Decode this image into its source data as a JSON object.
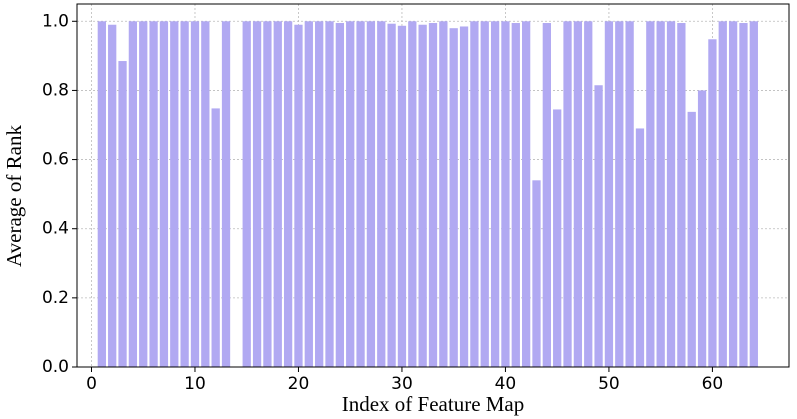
{
  "chart_data": {
    "type": "bar",
    "xlabel": "Index of Feature Map",
    "ylabel": "Average of Rank",
    "x": [
      1,
      2,
      3,
      4,
      5,
      6,
      7,
      8,
      9,
      10,
      11,
      12,
      13,
      14,
      15,
      16,
      17,
      18,
      19,
      20,
      21,
      22,
      23,
      24,
      25,
      26,
      27,
      28,
      29,
      30,
      31,
      32,
      33,
      34,
      35,
      36,
      37,
      38,
      39,
      40,
      41,
      42,
      43,
      44,
      45,
      46,
      47,
      48,
      49,
      50,
      51,
      52,
      53,
      54,
      55,
      56,
      57,
      58,
      59,
      60,
      61,
      62,
      63,
      64
    ],
    "values": [
      1.0,
      0.99,
      0.885,
      1.0,
      1.0,
      1.0,
      1.0,
      1.0,
      1.0,
      1.0,
      1.0,
      0.748,
      1.0,
      0,
      1.0,
      1.0,
      1.0,
      1.0,
      1.0,
      0.99,
      1.0,
      1.0,
      1.0,
      0.995,
      1.0,
      1.0,
      1.0,
      1.0,
      0.993,
      0.987,
      1.0,
      0.99,
      0.995,
      1.0,
      0.98,
      0.985,
      1.0,
      1.0,
      1.0,
      1.0,
      0.995,
      1.0,
      0.54,
      0.995,
      0.745,
      1.0,
      1.0,
      1.0,
      0.815,
      1.0,
      1.0,
      1.0,
      0.69,
      1.0,
      1.0,
      1.0,
      0.995,
      0.738,
      0.8,
      0.948,
      1.0,
      1.0,
      0.995,
      1.0
    ],
    "bar_width": 0.8,
    "color": "#b1a9f2",
    "xlim": [
      -1.4,
      67.4
    ],
    "xticks": [
      0,
      10,
      20,
      30,
      40,
      50,
      60
    ],
    "ylim": [
      0,
      1.05
    ],
    "yticks": [
      {
        "value": 0,
        "label": "0.0"
      },
      0.2,
      0.4,
      0.6,
      0.8,
      {
        "value": 1,
        "label": "1.0"
      }
    ],
    "grid": true
  }
}
